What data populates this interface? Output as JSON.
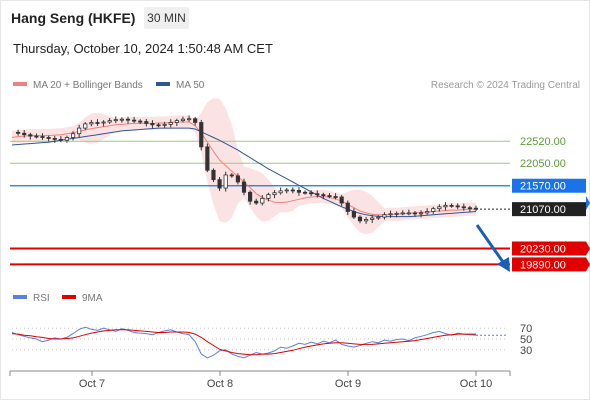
{
  "header": {
    "title": "Hang Seng (HKFE)",
    "timeframe": "30 MIN",
    "datetime": "Thursday, October 10, 2024 1:50:48 AM CET"
  },
  "legend_main": [
    {
      "label": "MA 20 + Bollinger Bands",
      "color": "#f08080"
    },
    {
      "label": "MA 50",
      "color": "#2f5597"
    }
  ],
  "credit": "Research © 2024 Trading Central",
  "legend_rsi": [
    {
      "label": "RSI",
      "color": "#5b7fde"
    },
    {
      "label": "9MA",
      "color": "#e00000"
    }
  ],
  "chart_data": [
    {
      "type": "candlestick",
      "x_ticks": [
        "Oct 7",
        "Oct 8",
        "Oct 9",
        "Oct 10"
      ],
      "ylim": [
        19600,
        23400
      ],
      "levels": [
        {
          "label": "22520.00",
          "value": 22520,
          "kind": "target",
          "color": "#9acd78"
        },
        {
          "label": "22050.00",
          "value": 22050,
          "kind": "target",
          "color": "#9acd78"
        },
        {
          "label": "21570.00",
          "value": 21570,
          "kind": "pivot",
          "color": "#1a73e8"
        },
        {
          "label": "21070.00",
          "value": 21070,
          "kind": "last",
          "color": "#222222"
        },
        {
          "label": "20230.00",
          "value": 20230,
          "kind": "support",
          "color": "#e00000"
        },
        {
          "label": "19890.00",
          "value": 19890,
          "kind": "support",
          "color": "#e00000"
        }
      ],
      "series": [
        {
          "name": "Price",
          "values": [
            22710,
            22690,
            22660,
            22630,
            22620,
            22600,
            22580,
            22560,
            22540,
            22600,
            22680,
            22800,
            22890,
            22920,
            22910,
            22930,
            22960,
            22980,
            22990,
            22970,
            22950,
            22940,
            22900,
            22870,
            22860,
            22880,
            22920,
            22960,
            22990,
            23000,
            22920,
            22400,
            21900,
            21700,
            21520,
            21800,
            21780,
            21650,
            21430,
            21240,
            21200,
            21300,
            21380,
            21420,
            21460,
            21480,
            21470,
            21430,
            21420,
            21400,
            21380,
            21360,
            21340,
            21330,
            21200,
            21020,
            20900,
            20820,
            20850,
            20880,
            20900,
            20950,
            20970,
            20980,
            20990,
            20990,
            20970,
            20990,
            21020,
            21080,
            21120,
            21150,
            21140,
            21120,
            21100,
            21090,
            21070
          ]
        },
        {
          "name": "MA 20",
          "values": [
            22600,
            22620,
            22630,
            22640,
            22640,
            22640,
            22640,
            22650,
            22660,
            22680,
            22700,
            22730,
            22760,
            22790,
            22810,
            22830,
            22850,
            22870,
            22880,
            22890,
            22900,
            22900,
            22900,
            22900,
            22910,
            22910,
            22920,
            22930,
            22930,
            22930,
            22850,
            22700,
            22500,
            22300,
            22120,
            22000,
            21880,
            21770,
            21650,
            21530,
            21400,
            21320,
            21260,
            21220,
            21210,
            21220,
            21250,
            21280,
            21310,
            21330,
            21340,
            21340,
            21320,
            21290,
            21240,
            21170,
            21100,
            21030,
            20990,
            20960,
            20950,
            20950,
            20960,
            20960,
            20970,
            20980,
            20990,
            21000,
            21010,
            21020,
            21030,
            21040,
            21050,
            21050,
            21060,
            21070,
            21070
          ]
        },
        {
          "name": "MA 50",
          "values": [
            22440,
            22450,
            22460,
            22470,
            22480,
            22490,
            22500,
            22520,
            22540,
            22560,
            22580,
            22600,
            22620,
            22640,
            22660,
            22680,
            22700,
            22720,
            22740,
            22750,
            22760,
            22770,
            22780,
            22790,
            22800,
            22800,
            22800,
            22800,
            22800,
            22800,
            22780,
            22720,
            22660,
            22600,
            22540,
            22470,
            22400,
            22330,
            22250,
            22170,
            22090,
            22010,
            21930,
            21860,
            21790,
            21720,
            21650,
            21580,
            21510,
            21440,
            21370,
            21300,
            21240,
            21180,
            21120,
            21070,
            21020,
            20980,
            20950,
            20930,
            20920,
            20910,
            20910,
            20910,
            20910,
            20910,
            20920,
            20930,
            20940,
            20950,
            20960,
            20970,
            20980,
            20990,
            21000,
            21010,
            21020
          ]
        }
      ]
    },
    {
      "type": "line",
      "title": "RSI",
      "ylim": [
        0,
        100
      ],
      "y_ticks": [
        "70",
        "50",
        "30"
      ],
      "series": [
        {
          "name": "RSI",
          "values": [
            62,
            58,
            55,
            52,
            50,
            45,
            48,
            52,
            50,
            53,
            60,
            68,
            72,
            68,
            66,
            70,
            67,
            64,
            69,
            66,
            62,
            61,
            60,
            58,
            62,
            65,
            67,
            63,
            60,
            58,
            45,
            22,
            15,
            20,
            28,
            30,
            22,
            18,
            15,
            20,
            25,
            22,
            24,
            28,
            35,
            33,
            37,
            42,
            40,
            44,
            41,
            46,
            43,
            48,
            40,
            37,
            35,
            38,
            42,
            45,
            43,
            48,
            46,
            49,
            50,
            47,
            52,
            55,
            58,
            62,
            64,
            60,
            57,
            61,
            59,
            58,
            57
          ]
        },
        {
          "name": "9MA",
          "values": [
            60,
            59,
            57,
            56,
            54,
            53,
            51,
            50,
            50,
            51,
            52,
            55,
            58,
            61,
            63,
            65,
            66,
            67,
            67,
            67,
            66,
            65,
            64,
            63,
            62,
            62,
            63,
            63,
            63,
            62,
            59,
            53,
            45,
            38,
            31,
            28,
            25,
            23,
            22,
            21,
            21,
            22,
            22,
            23,
            25,
            27,
            29,
            32,
            35,
            37,
            39,
            41,
            42,
            43,
            43,
            42,
            41,
            40,
            40,
            40,
            41,
            42,
            43,
            44,
            45,
            46,
            47,
            49,
            51,
            53,
            55,
            57,
            58,
            59,
            59,
            59,
            59
          ]
        }
      ]
    }
  ]
}
